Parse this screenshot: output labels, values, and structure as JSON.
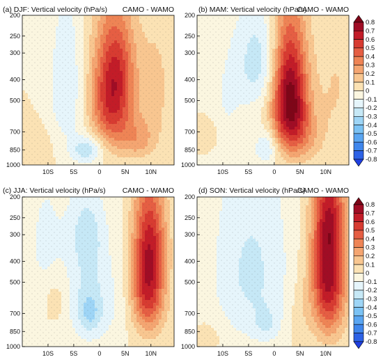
{
  "chart_data": [
    {
      "type": "heatmap",
      "panel_label": "(a) DJF: Vertical velocity (hPa/s)",
      "right_label": "CAMO - WAMO",
      "xticks": [
        "10S",
        "5S",
        "0",
        "5N",
        "10N"
      ],
      "yticks": [
        "200",
        "250",
        "300",
        "400",
        "500",
        "700",
        "850",
        "1000"
      ],
      "xlim": [
        -15,
        14.5
      ],
      "ylim": [
        1000,
        200
      ],
      "blobs": [
        {
          "x": 2.5,
          "p": 480,
          "sx": 2.8,
          "sp": 210,
          "amp": 0.65
        },
        {
          "x": 4.0,
          "p": 320,
          "sx": 2.3,
          "sp": 110,
          "amp": 0.15
        },
        {
          "x": 7.5,
          "p": 760,
          "sx": 2.5,
          "sp": 120,
          "amp": 0.22
        },
        {
          "x": -6.5,
          "p": 430,
          "sx": 2.3,
          "sp": 230,
          "amp": -0.2
        },
        {
          "x": -2.5,
          "p": 850,
          "sx": 2.2,
          "sp": 90,
          "amp": -0.28
        },
        {
          "x": 11.0,
          "p": 430,
          "sx": 2.5,
          "sp": 220,
          "amp": 0.12
        },
        {
          "x": -12.5,
          "p": 820,
          "sx": 2.5,
          "sp": 120,
          "amp": 0.07
        }
      ]
    },
    {
      "type": "heatmap",
      "panel_label": "(b) MAM: Vertical velocity (hPa/s)",
      "right_label": "CAMO - WAMO",
      "xticks": [
        "10S",
        "5S",
        "0",
        "5N",
        "10N"
      ],
      "yticks": [
        "200",
        "250",
        "300",
        "400",
        "500",
        "700",
        "850",
        "1000"
      ],
      "xlim": [
        -15,
        14.5
      ],
      "ylim": [
        1000,
        200
      ],
      "blobs": [
        {
          "x": 3.0,
          "p": 480,
          "sx": 2.4,
          "sp": 220,
          "amp": 0.85
        },
        {
          "x": 5.5,
          "p": 730,
          "sx": 3.0,
          "sp": 160,
          "amp": 0.2
        },
        {
          "x": -3.0,
          "p": 330,
          "sx": 3.0,
          "sp": 130,
          "amp": -0.25
        },
        {
          "x": -1.5,
          "p": 830,
          "sx": 1.6,
          "sp": 110,
          "amp": -0.22
        },
        {
          "x": -9.5,
          "p": 560,
          "sx": 3.0,
          "sp": 300,
          "amp": -0.1
        },
        {
          "x": -13.0,
          "p": 720,
          "sx": 1.8,
          "sp": 90,
          "amp": 0.14
        },
        {
          "x": 12.0,
          "p": 420,
          "sx": 2.5,
          "sp": 230,
          "amp": 0.1
        }
      ]
    },
    {
      "type": "heatmap",
      "panel_label": "(c) JJA: Vertical velocity (hPa/s)",
      "right_label": "CAMO - WAMO",
      "xticks": [
        "10S",
        "5S",
        "0",
        "5N",
        "10N"
      ],
      "yticks": [
        "200",
        "250",
        "300",
        "400",
        "500",
        "700",
        "850",
        "1000"
      ],
      "xlim": [
        -15,
        14.5
      ],
      "ylim": [
        1000,
        200
      ],
      "blobs": [
        {
          "x": 9.5,
          "p": 470,
          "sx": 2.2,
          "sp": 230,
          "amp": 0.72
        },
        {
          "x": 10.5,
          "p": 300,
          "sx": 2.0,
          "sp": 90,
          "amp": 0.12
        },
        {
          "x": -2.0,
          "p": 620,
          "sx": 2.8,
          "sp": 230,
          "amp": -0.25
        },
        {
          "x": -2.5,
          "p": 290,
          "sx": 2.5,
          "sp": 90,
          "amp": -0.18
        },
        {
          "x": -10.5,
          "p": 330,
          "sx": 3.0,
          "sp": 200,
          "amp": -0.12
        },
        {
          "x": -1.8,
          "p": 700,
          "sx": 1.3,
          "sp": 90,
          "amp": -0.12
        },
        {
          "x": 3.5,
          "p": 600,
          "sx": 2.0,
          "sp": 250,
          "amp": -0.06
        },
        {
          "x": -8.5,
          "p": 600,
          "sx": 1.4,
          "sp": 90,
          "amp": 0.1
        }
      ]
    },
    {
      "type": "heatmap",
      "panel_label": "(d) SON: Vertical velocity (hPa/s)",
      "right_label": "CAMO - WAMO",
      "xticks": [
        "10S",
        "5S",
        "0",
        "5N",
        "10N"
      ],
      "yticks": [
        "200",
        "250",
        "300",
        "400",
        "500",
        "700",
        "850",
        "1000"
      ],
      "xlim": [
        -15,
        14.5
      ],
      "ylim": [
        1000,
        200
      ],
      "blobs": [
        {
          "x": 10.5,
          "p": 440,
          "sx": 2.3,
          "sp": 270,
          "amp": 0.78
        },
        {
          "x": 11.0,
          "p": 260,
          "sx": 2.0,
          "sp": 70,
          "amp": 0.15
        },
        {
          "x": -4.5,
          "p": 450,
          "sx": 5.5,
          "sp": 330,
          "amp": -0.22
        },
        {
          "x": -1.5,
          "p": 790,
          "sx": 1.8,
          "sp": 100,
          "amp": -0.12
        },
        {
          "x": 5.0,
          "p": 700,
          "sx": 1.6,
          "sp": 200,
          "amp": 0.08
        },
        {
          "x": -12.5,
          "p": 880,
          "sx": 2.0,
          "sp": 110,
          "amp": 0.06
        }
      ]
    }
  ],
  "colorbar": {
    "labels": [
      "0.8",
      "0.7",
      "0.6",
      "0.5",
      "0.4",
      "0.3",
      "0.2",
      "0.1",
      "0",
      "-0.1",
      "-0.2",
      "-0.3",
      "-0.4",
      "-0.5",
      "-0.6",
      "-0.7",
      "-0.8"
    ],
    "levels": [
      -0.8,
      -0.7,
      -0.6,
      -0.5,
      -0.4,
      -0.3,
      -0.2,
      -0.1,
      0,
      0.1,
      0.2,
      0.3,
      0.4,
      0.5,
      0.6,
      0.7,
      0.8
    ],
    "colors": [
      "#1f3fe0",
      "#2d62e6",
      "#3f86ec",
      "#5aa6f2",
      "#7bc2f4",
      "#9ed5f6",
      "#c6e8f6",
      "#e6f5fb",
      "#fbf6e0",
      "#fbe2b4",
      "#f8c690",
      "#f4a571",
      "#ee8455",
      "#e55e43",
      "#d73b31",
      "#c21c28",
      "#a00d25",
      "#7e0618"
    ]
  }
}
